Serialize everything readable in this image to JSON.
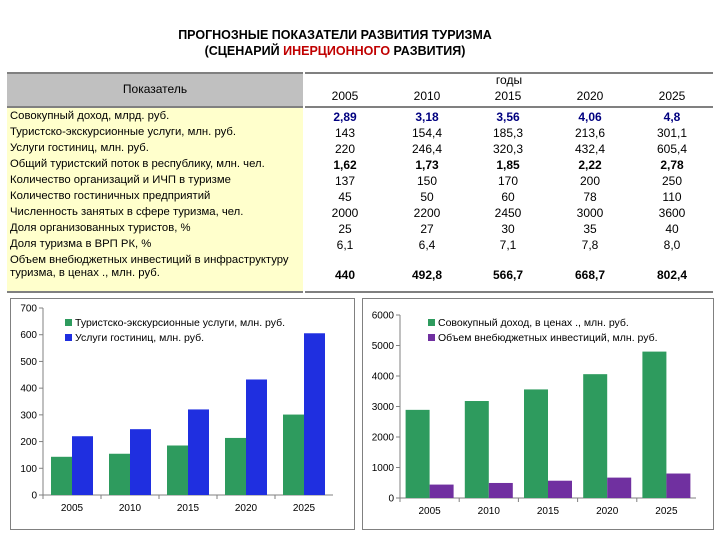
{
  "title": {
    "line1": "ПРОГНОЗНЫЕ ПОКАЗАТЕЛИ РАЗВИТИЯ ТУРИЗМА",
    "line2_pre": "(СЦЕНАРИЙ ",
    "line2_red": "ИНЕРЦИОННОГО",
    "line2_post": " РАЗВИТИЯ)"
  },
  "table": {
    "header_label": "Показатель",
    "years_label": "годы",
    "years": [
      "2005",
      "2010",
      "2015",
      "2020",
      "2025"
    ],
    "rows": [
      {
        "label": "Совокупный доход, млрд. руб.",
        "values": [
          "2,89",
          "3,18",
          "3,56",
          "4,06",
          "4,8"
        ],
        "bold": true,
        "color": "#000080"
      },
      {
        "label": "Туристско-экскурсионные услуги, млн. руб.",
        "values": [
          "143",
          "154,4",
          "185,3",
          "213,6",
          "301,1"
        ],
        "bold": false,
        "color": "#000000"
      },
      {
        "label": "Услуги гостиниц, млн. руб.",
        "values": [
          "220",
          "246,4",
          "320,3",
          "432,4",
          "605,4"
        ],
        "bold": false,
        "color": "#000000"
      },
      {
        "label": "Общий туристский поток в республику, млн. чел.",
        "values": [
          "1,62",
          "1,73",
          "1,85",
          "2,22",
          "2,78"
        ],
        "bold": true,
        "color": "#000000"
      },
      {
        "label": "Количество организаций и ИЧП в туризме",
        "values": [
          "137",
          "150",
          "170",
          "200",
          "250"
        ],
        "bold": false,
        "color": "#000000"
      },
      {
        "label": "Количество гостиничных предприятий",
        "values": [
          "45",
          "50",
          "60",
          "78",
          "110"
        ],
        "bold": false,
        "color": "#000000"
      },
      {
        "label": "Численность занятых в сфере туризма, чел.",
        "values": [
          "2000",
          "2200",
          "2450",
          "3000",
          "3600"
        ],
        "bold": false,
        "color": "#000000"
      },
      {
        "label": "Доля организованных туристов, %",
        "values": [
          "25",
          "27",
          "30",
          "35",
          "40"
        ],
        "bold": false,
        "color": "#000000"
      },
      {
        "label": "Доля туризма в ВРП РК, %",
        "values": [
          "6,1",
          "6,4",
          "7,1",
          "7,8",
          "8,0"
        ],
        "bold": false,
        "color": "#000000"
      },
      {
        "label": "Объем внебюджетных инвестиций в инфраструктуру туризма, в ценах ., млн. руб.",
        "values": [
          "440",
          "492,8",
          "566,7",
          "668,7",
          "802,4"
        ],
        "bold": true,
        "color": "#000000"
      }
    ]
  },
  "chart_data": [
    {
      "type": "bar",
      "categories": [
        "2005",
        "2010",
        "2015",
        "2020",
        "2025"
      ],
      "series": [
        {
          "name": "Туристско-экскурсионные услуги, млн. руб.",
          "values": [
            143,
            154.4,
            185.3,
            213.6,
            301.1
          ],
          "color": "#2e9b5e"
        },
        {
          "name": "Услуги гостиниц, млн. руб.",
          "values": [
            220,
            246.4,
            320.3,
            432.4,
            605.4
          ],
          "color": "#1f2fe0"
        }
      ],
      "ylim": [
        0,
        700
      ],
      "yticks": [
        0,
        100,
        200,
        300,
        400,
        500,
        600,
        700
      ],
      "legend": "top-left",
      "grid": false
    },
    {
      "type": "bar",
      "categories": [
        "2005",
        "2010",
        "2015",
        "2020",
        "2025"
      ],
      "series": [
        {
          "name": "Совокупный доход, в ценах ., млн. руб.",
          "values": [
            2890,
            3180,
            3560,
            4060,
            4800
          ],
          "color": "#2e9b5e"
        },
        {
          "name": "Объем внебюджетных инвестиций, млн. руб.",
          "values": [
            440,
            492.8,
            566.7,
            668.7,
            802.4
          ],
          "color": "#7030a0"
        }
      ],
      "ylim": [
        0,
        6000
      ],
      "yticks": [
        0,
        1000,
        2000,
        3000,
        4000,
        5000,
        6000
      ],
      "legend": "top-right",
      "grid": false
    }
  ]
}
